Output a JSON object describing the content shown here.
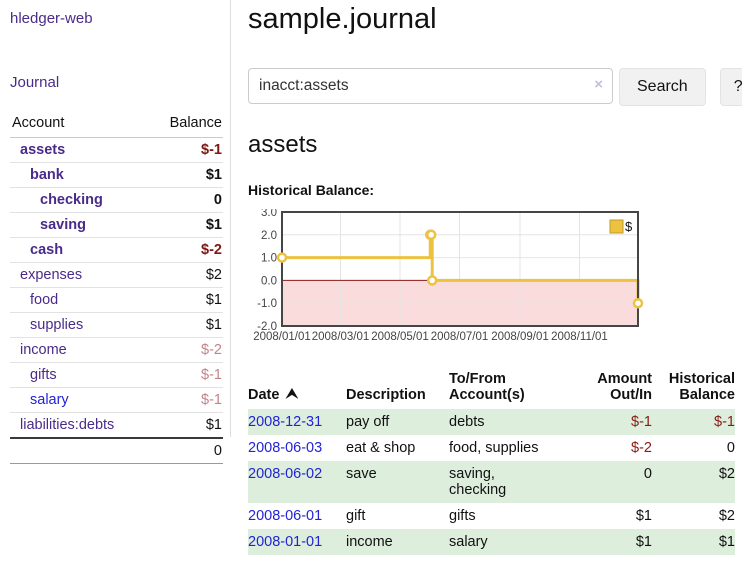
{
  "sidebar": {
    "app_title": "hledger-web",
    "journal_link": "Journal",
    "accounts": {
      "header_account": "Account",
      "header_balance": "Balance",
      "rows": [
        {
          "name": "assets",
          "balance": "$-1"
        },
        {
          "name": "bank",
          "balance": "$1"
        },
        {
          "name": "checking",
          "balance": "0"
        },
        {
          "name": "saving",
          "balance": "$1"
        },
        {
          "name": "cash",
          "balance": "$-2"
        },
        {
          "name": "expenses",
          "balance": "$2"
        },
        {
          "name": "food",
          "balance": "$1"
        },
        {
          "name": "supplies",
          "balance": "$1"
        },
        {
          "name": "income",
          "balance": "$-2"
        },
        {
          "name": "gifts",
          "balance": "$-1"
        },
        {
          "name": "salary",
          "balance": "$-1"
        },
        {
          "name": "liabilities:debts",
          "balance": "$1"
        }
      ],
      "total_balance": "0"
    }
  },
  "main": {
    "title": "sample.journal",
    "search": {
      "value": "inacct:assets",
      "clear_icon": "×",
      "search_button": "Search",
      "help_button": "?"
    },
    "account_heading": "assets",
    "chart_label": "Historical Balance:"
  },
  "chart_data": {
    "type": "line",
    "step": true,
    "title": "Historical Balance",
    "xrange": [
      "2008-01-01",
      "2008-12-31"
    ],
    "ylim": [
      -2,
      3
    ],
    "series": [
      {
        "name": "$",
        "color": "#edc240",
        "points": [
          [
            "2008-01-01",
            1
          ],
          [
            "2008-06-01",
            2
          ],
          [
            "2008-06-02",
            2
          ],
          [
            "2008-06-03",
            0
          ],
          [
            "2008-12-31",
            -1
          ]
        ]
      }
    ],
    "yticks": [
      {
        "label": "3.0",
        "v": 3
      },
      {
        "label": "2.0",
        "v": 2
      },
      {
        "label": "1.0",
        "v": 1
      },
      {
        "label": "0.0",
        "v": 0
      },
      {
        "label": "-1.0",
        "v": -1
      },
      {
        "label": "-2.0",
        "v": -2
      }
    ],
    "xticks": [
      {
        "label": "2008/01/01",
        "date": "2008-01-01"
      },
      {
        "label": "2008/03/01",
        "date": "2008-03-01"
      },
      {
        "label": "2008/05/01",
        "date": "2008-05-01"
      },
      {
        "label": "2008/07/01",
        "date": "2008-07-01"
      },
      {
        "label": "2008/09/01",
        "date": "2008-09-01"
      },
      {
        "label": "2008/11/01",
        "date": "2008-11-01"
      }
    ],
    "legend": {
      "label": "$",
      "position": "top-right"
    },
    "colors": {
      "line": "#edc240",
      "marker_fill": "#ffffff",
      "negative_region": "#fadcdc",
      "zero_line": "#8b1a1a",
      "grid": "#e4e4e4",
      "border": "#454545"
    }
  },
  "register": {
    "headers": {
      "date": "Date",
      "description": "Description",
      "tofrom": "To/From\nAccount(s)",
      "amount": "Amount\nOut/In",
      "balance": "Historical\nBalance"
    },
    "rows": [
      {
        "date": "2008-12-31",
        "description": "pay off",
        "accounts": "debts",
        "amount": "$-1",
        "balance": "$-1"
      },
      {
        "date": "2008-06-03",
        "description": "eat & shop",
        "accounts": "food, supplies",
        "amount": "$-2",
        "balance": "0"
      },
      {
        "date": "2008-06-02",
        "description": "save",
        "accounts": "saving,\nchecking",
        "amount": "0",
        "balance": "$2"
      },
      {
        "date": "2008-06-01",
        "description": "gift",
        "accounts": "gifts",
        "amount": "$1",
        "balance": "$2"
      },
      {
        "date": "2008-01-01",
        "description": "income",
        "accounts": "salary",
        "amount": "$1",
        "balance": "$1"
      }
    ]
  },
  "colors": {
    "link_purple": "#4a2b8a",
    "link_blue": "#2323d6",
    "negative_strong": "#7d1712",
    "negative_soft": "#c2848a",
    "negative_table": "#8b1a15",
    "stripe_green": "#ddeedd",
    "accent_gold": "#edc240"
  }
}
